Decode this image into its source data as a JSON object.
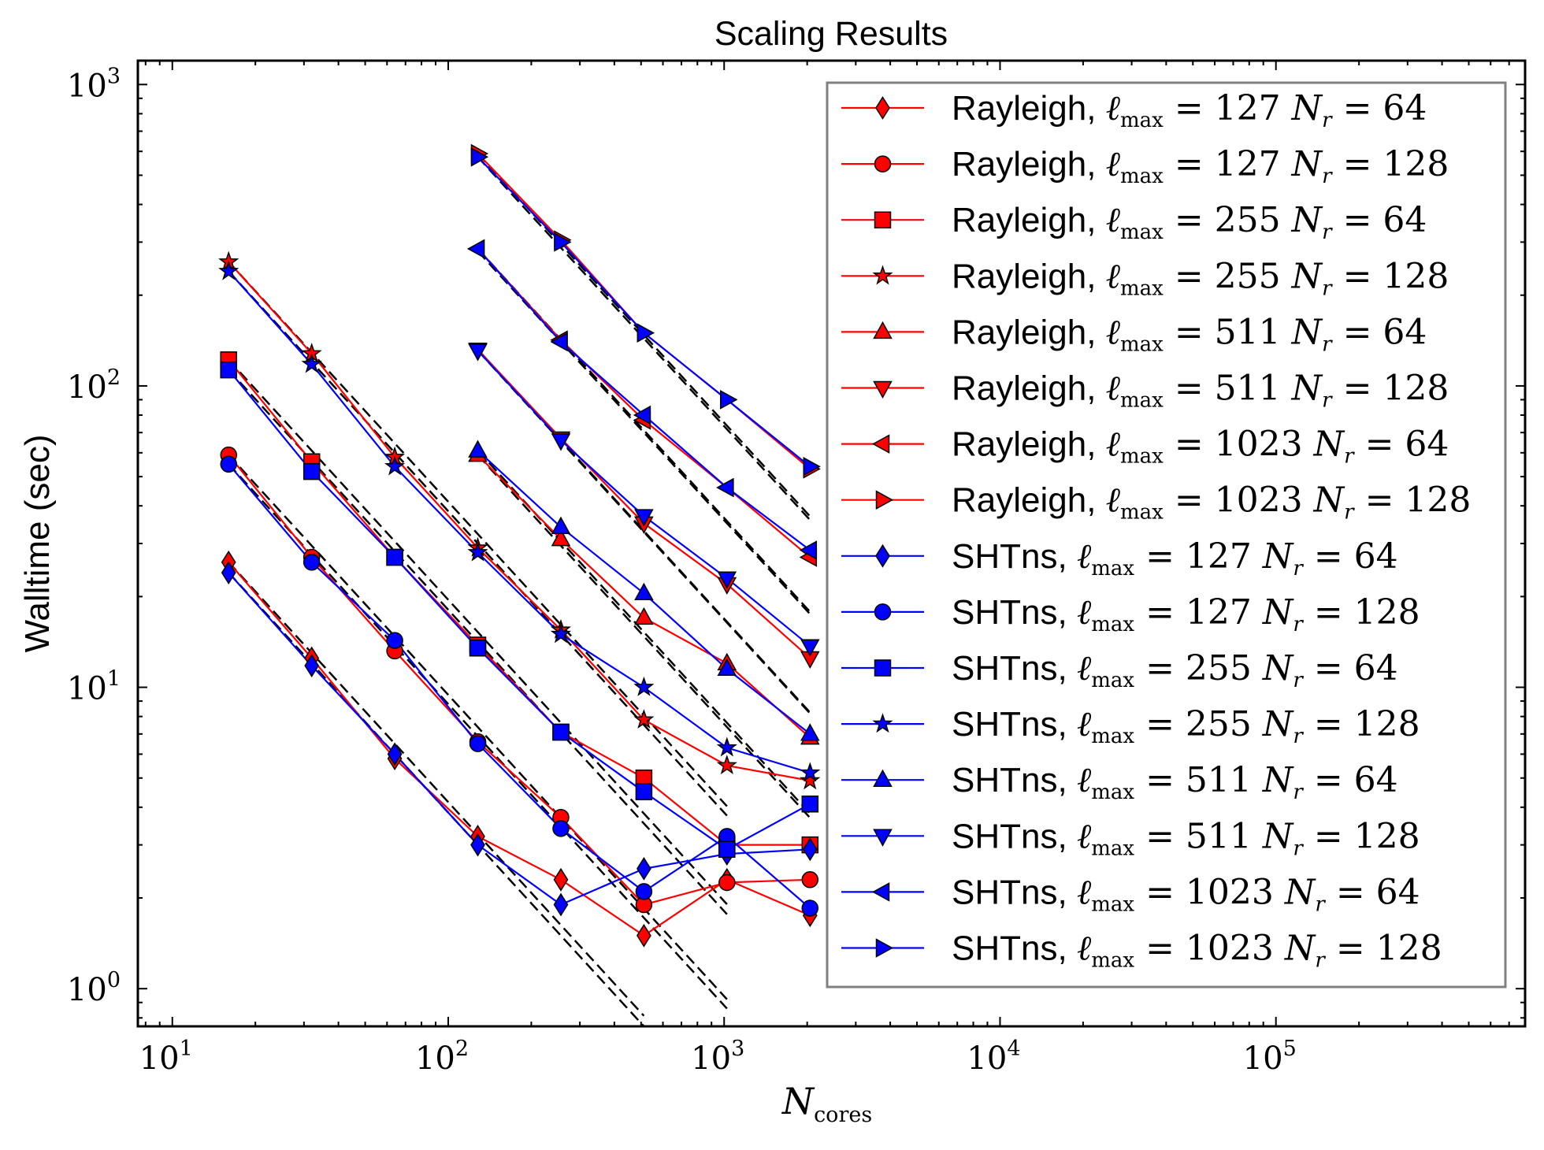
{
  "chart_data": {
    "type": "line",
    "title": "Scaling Results",
    "xlabel": "N",
    "xlabel_sub": "cores",
    "ylabel": "Walltime (sec)",
    "xscale": "log",
    "yscale": "log",
    "xlim": [
      7.5,
      800000
    ],
    "ylim": [
      0.75,
      1200
    ],
    "x_ticks": [
      {
        "value": 10,
        "base": "10",
        "exp": "1"
      },
      {
        "value": 100,
        "base": "10",
        "exp": "2"
      },
      {
        "value": 1000,
        "base": "10",
        "exp": "3"
      },
      {
        "value": 10000,
        "base": "10",
        "exp": "4"
      },
      {
        "value": 100000,
        "base": "10",
        "exp": "5"
      }
    ],
    "y_ticks": [
      {
        "value": 1,
        "base": "10",
        "exp": "0"
      },
      {
        "value": 10,
        "base": "10",
        "exp": "1"
      },
      {
        "value": 100,
        "base": "10",
        "exp": "2"
      },
      {
        "value": 1000,
        "base": "10",
        "exp": "3"
      }
    ],
    "legend_position": "upper-right",
    "grid": false,
    "series": [
      {
        "name": "Rayleigh, ℓmax = 127 Nr = 64",
        "code": "Rayleigh,",
        "lmax": "127",
        "nr": "64",
        "color": "#ff0000",
        "marker": "diamond",
        "x": [
          16,
          32,
          64,
          128,
          256,
          512,
          1024,
          2048
        ],
        "y": [
          26,
          12.5,
          5.8,
          3.2,
          2.3,
          1.5,
          2.3,
          1.75
        ]
      },
      {
        "name": "Rayleigh, ℓmax = 127 Nr = 128",
        "code": "Rayleigh,",
        "lmax": "127",
        "nr": "128",
        "color": "#ff0000",
        "marker": "circle",
        "x": [
          16,
          32,
          64,
          128,
          256,
          512,
          1024,
          2048
        ],
        "y": [
          59,
          27,
          13.2,
          6.6,
          3.7,
          1.9,
          2.25,
          2.3
        ]
      },
      {
        "name": "Rayleigh, ℓmax = 255 Nr = 64",
        "code": "Rayleigh,",
        "lmax": "255",
        "nr": "64",
        "color": "#ff0000",
        "marker": "square",
        "x": [
          16,
          32,
          64,
          128,
          256,
          512,
          1024,
          2048
        ],
        "y": [
          122,
          56,
          27,
          13.8,
          7.1,
          5.0,
          3.0,
          3.0
        ]
      },
      {
        "name": "Rayleigh, ℓmax = 255 Nr = 128",
        "code": "Rayleigh,",
        "lmax": "255",
        "nr": "128",
        "color": "#ff0000",
        "marker": "star",
        "x": [
          16,
          32,
          64,
          128,
          256,
          512,
          1024,
          2048
        ],
        "y": [
          258,
          128,
          58,
          29,
          15.5,
          7.8,
          5.5,
          4.9
        ]
      },
      {
        "name": "Rayleigh, ℓmax = 511 Nr = 64",
        "code": "Rayleigh,",
        "lmax": "511",
        "nr": "64",
        "color": "#ff0000",
        "marker": "triangle-up",
        "x": [
          128,
          256,
          512,
          1024,
          2048
        ],
        "y": [
          59,
          31,
          17,
          12,
          6.8
        ]
      },
      {
        "name": "Rayleigh, ℓmax = 511 Nr = 128",
        "code": "Rayleigh,",
        "lmax": "511",
        "nr": "128",
        "color": "#ff0000",
        "marker": "triangle-down",
        "x": [
          128,
          256,
          512,
          1024,
          2048
        ],
        "y": [
          132,
          67,
          35,
          22,
          12.5
        ]
      },
      {
        "name": "Rayleigh, ℓmax = 1023 Nr = 64",
        "code": "Rayleigh,",
        "lmax": "1023",
        "nr": "64",
        "color": "#ff0000",
        "marker": "triangle-left",
        "x": [
          128,
          256,
          512,
          1024,
          2048
        ],
        "y": [
          285,
          142,
          77,
          46,
          27
        ]
      },
      {
        "name": "Rayleigh, ℓmax = 1023 Nr = 128",
        "code": "Rayleigh,",
        "lmax": "1023",
        "nr": "128",
        "color": "#ff0000",
        "marker": "triangle-right",
        "x": [
          128,
          256,
          512,
          1024,
          2048
        ],
        "y": [
          590,
          305,
          150,
          90,
          53
        ]
      },
      {
        "name": "SHTns, ℓmax = 127 Nr = 64",
        "code": "SHTns,",
        "lmax": "127",
        "nr": "64",
        "color": "#0000ff",
        "marker": "diamond",
        "x": [
          16,
          32,
          64,
          128,
          256,
          512,
          1024,
          2048
        ],
        "y": [
          24,
          11.8,
          6.0,
          3.0,
          1.9,
          2.5,
          2.8,
          2.9
        ]
      },
      {
        "name": "SHTns, ℓmax = 127 Nr = 128",
        "code": "SHTns,",
        "lmax": "127",
        "nr": "128",
        "color": "#0000ff",
        "marker": "circle",
        "x": [
          16,
          32,
          64,
          128,
          256,
          512,
          1024,
          2048
        ],
        "y": [
          55,
          26,
          14.3,
          6.5,
          3.4,
          2.1,
          3.2,
          1.85
        ]
      },
      {
        "name": "SHTns, ℓmax = 255 Nr = 64",
        "code": "SHTns,",
        "lmax": "255",
        "nr": "64",
        "color": "#0000ff",
        "marker": "square",
        "x": [
          16,
          32,
          64,
          128,
          256,
          512,
          1024,
          2048
        ],
        "y": [
          113,
          52,
          27,
          13.5,
          7.1,
          4.5,
          2.9,
          4.1
        ]
      },
      {
        "name": "SHTns, ℓmax = 255 Nr = 128",
        "code": "SHTns,",
        "lmax": "255",
        "nr": "128",
        "color": "#0000ff",
        "marker": "star",
        "x": [
          16,
          32,
          64,
          128,
          256,
          512,
          1024,
          2048
        ],
        "y": [
          240,
          118,
          54,
          28,
          15,
          10,
          6.3,
          5.2
        ]
      },
      {
        "name": "SHTns, ℓmax = 511 Nr = 64",
        "code": "SHTns,",
        "lmax": "511",
        "nr": "64",
        "color": "#0000ff",
        "marker": "triangle-up",
        "x": [
          128,
          256,
          512,
          1024,
          2048
        ],
        "y": [
          61,
          34,
          20.5,
          11.5,
          7.0
        ]
      },
      {
        "name": "SHTns, ℓmax = 511 Nr = 128",
        "code": "SHTns,",
        "lmax": "511",
        "nr": "128",
        "color": "#0000ff",
        "marker": "triangle-down",
        "x": [
          128,
          256,
          512,
          1024,
          2048
        ],
        "y": [
          131,
          66,
          37,
          23,
          13.7
        ]
      },
      {
        "name": "SHTns, ℓmax = 1023 Nr = 64",
        "code": "SHTns,",
        "lmax": "1023",
        "nr": "64",
        "color": "#0000ff",
        "marker": "triangle-left",
        "x": [
          128,
          256,
          512,
          1024,
          2048
        ],
        "y": [
          285,
          140,
          80,
          46,
          28.5
        ]
      },
      {
        "name": "SHTns, ℓmax = 1023 Nr = 128",
        "code": "SHTns,",
        "lmax": "1023",
        "nr": "128",
        "color": "#0000ff",
        "marker": "triangle-right",
        "x": [
          128,
          256,
          512,
          1024,
          2048
        ],
        "y": [
          575,
          300,
          150,
          90,
          54
        ]
      }
    ],
    "reference_lines": {
      "style": "black dashed, ideal scaling",
      "lines": [
        {
          "x": [
            16,
            512
          ],
          "y": [
            26,
            0.8125
          ]
        },
        {
          "x": [
            16,
            512
          ],
          "y": [
            24,
            0.75
          ]
        },
        {
          "x": [
            16,
            1024
          ],
          "y": [
            59,
            0.922
          ]
        },
        {
          "x": [
            16,
            1024
          ],
          "y": [
            55,
            0.859
          ]
        },
        {
          "x": [
            16,
            1024
          ],
          "y": [
            122,
            1.906
          ]
        },
        {
          "x": [
            16,
            1024
          ],
          "y": [
            113,
            1.766
          ]
        },
        {
          "x": [
            16,
            1024
          ],
          "y": [
            258,
            4.03
          ]
        },
        {
          "x": [
            16,
            1024
          ],
          "y": [
            240,
            3.75
          ]
        },
        {
          "x": [
            128,
            2048
          ],
          "y": [
            59,
            3.69
          ]
        },
        {
          "x": [
            128,
            2048
          ],
          "y": [
            61,
            3.81
          ]
        },
        {
          "x": [
            128,
            2048
          ],
          "y": [
            132,
            8.25
          ]
        },
        {
          "x": [
            128,
            2048
          ],
          "y": [
            131,
            8.19
          ]
        },
        {
          "x": [
            128,
            2048
          ],
          "y": [
            285,
            17.8
          ]
        },
        {
          "x": [
            128,
            2048
          ],
          "y": [
            280,
            17.5
          ]
        },
        {
          "x": [
            128,
            2048
          ],
          "y": [
            590,
            36.9
          ]
        },
        {
          "x": [
            128,
            2048
          ],
          "y": [
            575,
            35.9
          ]
        }
      ]
    }
  }
}
